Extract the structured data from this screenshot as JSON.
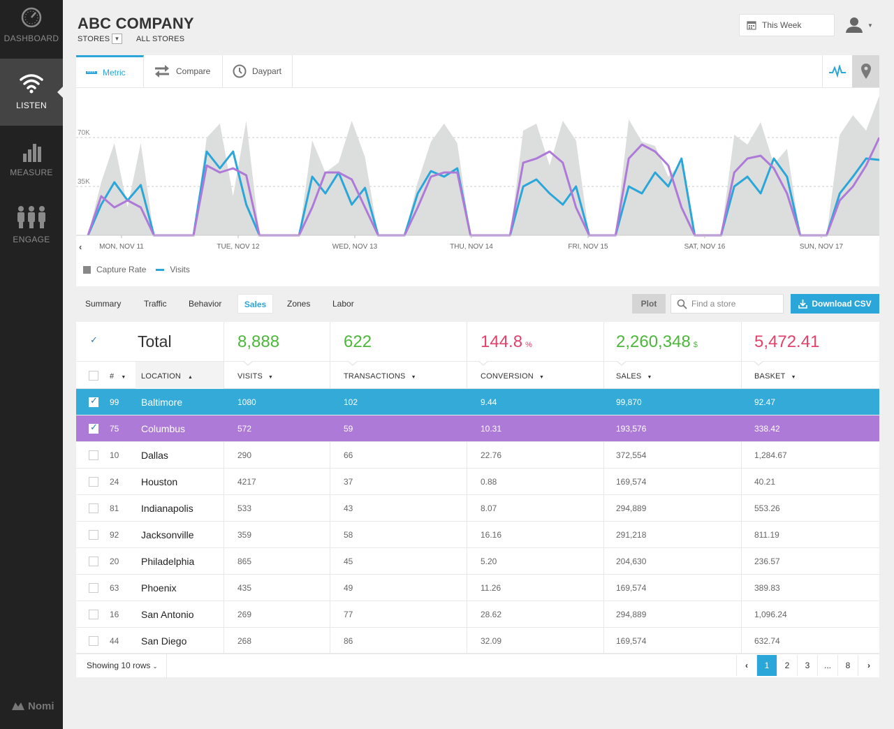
{
  "sidebar": {
    "items": [
      {
        "label": "DASHBOARD",
        "icon": "gauge-icon"
      },
      {
        "label": "LISTEN",
        "icon": "wifi-icon",
        "active": true
      },
      {
        "label": "MEASURE",
        "icon": "bar-chart-icon"
      },
      {
        "label": "ENGAGE",
        "icon": "people-icon"
      }
    ],
    "logo_text": "Nomi"
  },
  "header": {
    "title": "ABC COMPANY",
    "stores_label": "STORES",
    "all_stores": "ALL STORES",
    "date_range": "This Week"
  },
  "chart_panel": {
    "tabs": [
      {
        "label": "Metric",
        "icon": "ruler-icon",
        "active": true
      },
      {
        "label": "Compare",
        "icon": "swap-arrows-icon"
      },
      {
        "label": "Daypart",
        "icon": "clock-icon"
      }
    ],
    "view_icons": [
      "line-chart-icon",
      "map-pin-icon"
    ]
  },
  "chart_data": {
    "type": "line",
    "x_labels": [
      "MON, NOV 11",
      "TUE, NOV  12",
      "WED, NOV 13",
      "THU, NOV 14",
      "FRI, NOV 15",
      "SAT, NOV 16",
      "SUN, NOV 17"
    ],
    "y_ticks": [
      {
        "value": 35000,
        "label": "35K"
      },
      {
        "value": 70000,
        "label": "70K"
      }
    ],
    "ylim": [
      0,
      100000
    ],
    "grid": "dashed horizontal at ticks",
    "legend": [
      "Capture Rate",
      "Visits"
    ],
    "legend_placement": "bottom-left",
    "series": [
      {
        "name": "Capture Rate",
        "kind": "area",
        "color": "#dcdddd",
        "values": [
          0,
          38000,
          66000,
          20000,
          66000,
          0,
          0,
          0,
          0,
          70000,
          80000,
          28000,
          82000,
          0,
          0,
          0,
          0,
          68000,
          45000,
          52000,
          82000,
          56000,
          0,
          0,
          0,
          38000,
          67000,
          80000,
          66000,
          0,
          0,
          0,
          0,
          75000,
          80000,
          50000,
          82000,
          68000,
          0,
          0,
          0,
          83000,
          67000,
          64000,
          42000,
          52000,
          0,
          0,
          0,
          72000,
          65000,
          81000,
          51000,
          62000,
          0,
          0,
          0,
          72000,
          86000,
          75000,
          100000
        ]
      },
      {
        "name": "Visits",
        "kind": "line",
        "color": "#2ba6d8",
        "values": [
          0,
          22000,
          38000,
          25000,
          36000,
          0,
          0,
          0,
          0,
          60000,
          48000,
          60000,
          22000,
          0,
          0,
          0,
          0,
          42000,
          30000,
          45000,
          22000,
          34000,
          0,
          0,
          0,
          30000,
          46000,
          42000,
          48000,
          0,
          0,
          0,
          0,
          35000,
          40000,
          30000,
          22000,
          35000,
          0,
          0,
          0,
          35000,
          30000,
          45000,
          35000,
          55000,
          0,
          0,
          0,
          35000,
          42000,
          30000,
          55000,
          42000,
          0,
          0,
          0,
          30000,
          42000,
          55000,
          54000
        ]
      },
      {
        "name": "",
        "kind": "line",
        "color": "#ae7ad8",
        "values": [
          0,
          28000,
          20000,
          25000,
          20000,
          0,
          0,
          0,
          0,
          50000,
          45000,
          48000,
          43000,
          0,
          0,
          0,
          0,
          20000,
          45000,
          45000,
          40000,
          20000,
          0,
          0,
          0,
          20000,
          42000,
          45000,
          45000,
          0,
          0,
          0,
          0,
          52000,
          55000,
          60000,
          52000,
          20000,
          0,
          0,
          0,
          55000,
          65000,
          60000,
          50000,
          20000,
          0,
          0,
          0,
          45000,
          55000,
          57000,
          48000,
          30000,
          0,
          0,
          0,
          25000,
          35000,
          50000,
          70000
        ]
      }
    ]
  },
  "legend": {
    "capture": "Capture Rate",
    "visits": "Visits"
  },
  "subtabs": [
    "Summary",
    "Traffic",
    "Behavior",
    "Sales",
    "Zones",
    "Labor"
  ],
  "active_subtab": "Sales",
  "toolbar": {
    "plot_label": "Plot",
    "search_placeholder": "Find a store",
    "download_label": "Download CSV"
  },
  "totals": {
    "label": "Total",
    "visits": "8,888",
    "transactions": "622",
    "conversion": "144.8",
    "conversion_unit": "%",
    "sales": "2,260,348",
    "sales_unit": "$",
    "basket": "5,472.41"
  },
  "columns": {
    "num": "#",
    "location": "LOCATION",
    "visits": "VISITS",
    "transactions": "TRANSACTIONS",
    "conversion": "CONVERSION",
    "sales": "SALES",
    "basket": "BASKET"
  },
  "rows": [
    {
      "num": "99",
      "location": "Baltimore",
      "visits": "1080",
      "transactions": "102",
      "conversion": "9.44",
      "sales": "99,870",
      "basket": "92.47",
      "checked": true,
      "highlight": "#33aad7"
    },
    {
      "num": "75",
      "location": "Columbus",
      "visits": "572",
      "transactions": "59",
      "conversion": "10.31",
      "sales": "193,576",
      "basket": "338.42",
      "checked": true,
      "highlight": "#ae7ad8"
    },
    {
      "num": "10",
      "location": "Dallas",
      "visits": "290",
      "transactions": "66",
      "conversion": "22.76",
      "sales": "372,554",
      "basket": "1,284.67"
    },
    {
      "num": "24",
      "location": "Houston",
      "visits": "4217",
      "transactions": "37",
      "conversion": "0.88",
      "sales": "169,574",
      "basket": "40.21"
    },
    {
      "num": "81",
      "location": "Indianapolis",
      "visits": "533",
      "transactions": "43",
      "conversion": "8.07",
      "sales": "294,889",
      "basket": "553.26"
    },
    {
      "num": "92",
      "location": "Jacksonville",
      "visits": "359",
      "transactions": "58",
      "conversion": "16.16",
      "sales": "291,218",
      "basket": "811.19"
    },
    {
      "num": "20",
      "location": " Philadelphia",
      "visits": "865",
      "transactions": "45",
      "conversion": "5.20",
      "sales": "204,630",
      "basket": "236.57"
    },
    {
      "num": "63",
      "location": "Phoenix",
      "visits": "435",
      "transactions": "49",
      "conversion": "11.26",
      "sales": "169,574",
      "basket": "389.83"
    },
    {
      "num": "16",
      "location": "San Antonio",
      "visits": "269",
      "transactions": "77",
      "conversion": "28.62",
      "sales": "294,889",
      "basket": "1,096.24"
    },
    {
      "num": "44",
      "location": "San Diego",
      "visits": "268",
      "transactions": "86",
      "conversion": "32.09",
      "sales": "169,574",
      "basket": "632.74"
    }
  ],
  "footer": {
    "showing": "Showing 10 rows",
    "pages": [
      "1",
      "2",
      "3",
      "...",
      "8"
    ],
    "current_page": "1"
  }
}
